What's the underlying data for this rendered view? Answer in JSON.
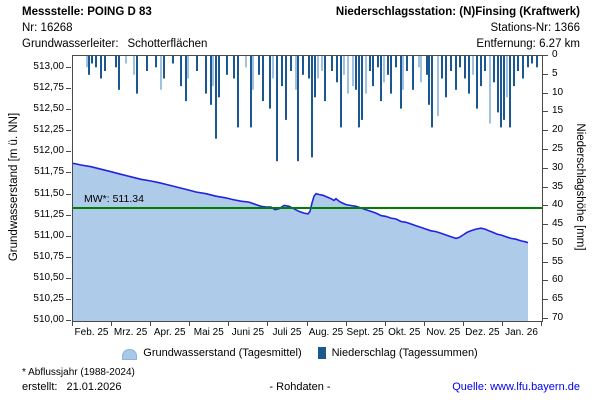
{
  "header": {
    "left": {
      "title": "Messstelle: POING D 83",
      "nr_label": "Nr:",
      "nr_value": "16268",
      "aquifer_label": "Grundwasserleiter:",
      "aquifer_value": "Schotterflächen"
    },
    "right": {
      "title": "Niederschlagsstation: (N)Finsing (Kraftwerk)",
      "station_label": "Stations-Nr:",
      "station_value": "1366",
      "distance_label": "Entfernung:",
      "distance_value": "6.27 km"
    }
  },
  "chart_data": {
    "type": "line+bar",
    "title": "",
    "x_axis": {
      "labels": [
        "Feb. 25",
        "Mrz. 25",
        "Apr. 25",
        "Mai 25",
        "Juni 25",
        "Juli 25",
        "Aug. 25",
        "Sept. 25",
        "Okt. 25",
        "Nov. 25",
        "Dez. 25",
        "Jan. 26"
      ]
    },
    "left_axis": {
      "label": "Grundwasserstand [m ü. NN]",
      "tick_labels": [
        "513,00",
        "512,75",
        "512,50",
        "512,25",
        "512,00",
        "511,75",
        "511,50",
        "511,25",
        "511,00",
        "510,75",
        "510,50",
        "510,25",
        "510,00"
      ],
      "tick_values": [
        513.0,
        512.75,
        512.5,
        512.25,
        512.0,
        511.75,
        511.5,
        511.25,
        511.0,
        510.75,
        510.5,
        510.25,
        510.0
      ],
      "range": [
        510.0,
        513.15
      ],
      "grid": false
    },
    "right_axis": {
      "label": "Niederschlagshöhe [mm]",
      "tick_values": [
        0,
        5,
        10,
        15,
        20,
        25,
        30,
        35,
        40,
        45,
        50,
        55,
        60,
        65,
        70
      ],
      "range": [
        0,
        70
      ],
      "inverted": true
    },
    "mw_line": {
      "label": "MW*: 511.34",
      "value": 511.34,
      "color": "#007F00"
    },
    "groundwater": {
      "name": "Grundwasserstand (Tagesmittel)",
      "line_color": "#2222E0",
      "fill_color": "#AECBEA",
      "points": [
        [
          72,
          511.87
        ],
        [
          80,
          511.85
        ],
        [
          90,
          511.83
        ],
        [
          100,
          511.8
        ],
        [
          110,
          511.77
        ],
        [
          120,
          511.74
        ],
        [
          130,
          511.71
        ],
        [
          140,
          511.68
        ],
        [
          150,
          511.66
        ],
        [
          158,
          511.64
        ],
        [
          165,
          511.62
        ],
        [
          175,
          511.59
        ],
        [
          185,
          511.56
        ],
        [
          195,
          511.53
        ],
        [
          205,
          511.51
        ],
        [
          215,
          511.48
        ],
        [
          225,
          511.46
        ],
        [
          232,
          511.44
        ],
        [
          240,
          511.42
        ],
        [
          248,
          511.41
        ],
        [
          255,
          511.38
        ],
        [
          260,
          511.36
        ],
        [
          265,
          511.35
        ],
        [
          270,
          511.35
        ],
        [
          274,
          511.32
        ],
        [
          278,
          511.33
        ],
        [
          283,
          511.37
        ],
        [
          288,
          511.36
        ],
        [
          293,
          511.33
        ],
        [
          298,
          511.3
        ],
        [
          303,
          511.28
        ],
        [
          307,
          511.27
        ],
        [
          309,
          511.3
        ],
        [
          311,
          511.4
        ],
        [
          313,
          511.48
        ],
        [
          315,
          511.51
        ],
        [
          318,
          511.5
        ],
        [
          322,
          511.49
        ],
        [
          326,
          511.47
        ],
        [
          330,
          511.45
        ],
        [
          333,
          511.43
        ],
        [
          335,
          511.45
        ],
        [
          338,
          511.42
        ],
        [
          341,
          511.4
        ],
        [
          345,
          511.38
        ],
        [
          350,
          511.37
        ],
        [
          355,
          511.36
        ],
        [
          360,
          511.34
        ],
        [
          365,
          511.32
        ],
        [
          370,
          511.3
        ],
        [
          375,
          511.28
        ],
        [
          380,
          511.25
        ],
        [
          385,
          511.24
        ],
        [
          390,
          511.22
        ],
        [
          395,
          511.21
        ],
        [
          400,
          511.18
        ],
        [
          405,
          511.17
        ],
        [
          410,
          511.15
        ],
        [
          415,
          511.13
        ],
        [
          420,
          511.11
        ],
        [
          425,
          511.09
        ],
        [
          430,
          511.07
        ],
        [
          435,
          511.06
        ],
        [
          440,
          511.04
        ],
        [
          445,
          511.02
        ],
        [
          450,
          511.0
        ],
        [
          455,
          510.98
        ],
        [
          458,
          510.99
        ],
        [
          462,
          511.02
        ],
        [
          466,
          511.05
        ],
        [
          470,
          511.07
        ],
        [
          475,
          511.09
        ],
        [
          480,
          511.1
        ],
        [
          484,
          511.09
        ],
        [
          488,
          511.07
        ],
        [
          492,
          511.05
        ],
        [
          496,
          511.03
        ],
        [
          500,
          511.02
        ],
        [
          505,
          511.0
        ],
        [
          510,
          510.98
        ],
        [
          515,
          510.97
        ],
        [
          520,
          510.95
        ],
        [
          524,
          510.94
        ],
        [
          527,
          510.93
        ]
      ]
    },
    "precipitation": {
      "name": "Niederschlag (Tagessummen)",
      "color_dark": "#1B5891",
      "color_light": "#9FC2E2",
      "bars": [
        [
          86,
          3,
          "l"
        ],
        [
          88,
          5,
          "d"
        ],
        [
          91,
          2,
          "d"
        ],
        [
          95,
          3,
          "d"
        ],
        [
          100,
          6,
          "d"
        ],
        [
          104,
          4,
          "d"
        ],
        [
          115,
          3,
          "d"
        ],
        [
          118,
          9,
          "d"
        ],
        [
          125,
          2,
          "l"
        ],
        [
          133,
          5,
          "l"
        ],
        [
          136,
          10,
          "d"
        ],
        [
          146,
          4,
          "d"
        ],
        [
          155,
          3,
          "d"
        ],
        [
          160,
          9,
          "l"
        ],
        [
          163,
          6,
          "d"
        ],
        [
          172,
          2,
          "d"
        ],
        [
          180,
          8,
          "d"
        ],
        [
          185,
          12,
          "d"
        ],
        [
          187,
          6,
          "l"
        ],
        [
          196,
          4,
          "d"
        ],
        [
          205,
          10,
          "d"
        ],
        [
          210,
          13,
          "d"
        ],
        [
          212,
          8,
          "l"
        ],
        [
          215,
          22,
          "d"
        ],
        [
          218,
          11,
          "d"
        ],
        [
          226,
          5,
          "d"
        ],
        [
          233,
          6,
          "d"
        ],
        [
          237,
          19,
          "d"
        ],
        [
          245,
          3,
          "l"
        ],
        [
          250,
          19,
          "d"
        ],
        [
          252,
          9,
          "l"
        ],
        [
          258,
          5,
          "d"
        ],
        [
          262,
          12,
          "d"
        ],
        [
          269,
          14,
          "d"
        ],
        [
          272,
          6,
          "l"
        ],
        [
          276,
          28,
          "d"
        ],
        [
          281,
          8,
          "d"
        ],
        [
          285,
          17,
          "d"
        ],
        [
          290,
          4,
          "d"
        ],
        [
          295,
          9,
          "l"
        ],
        [
          297,
          28,
          "d"
        ],
        [
          302,
          5,
          "d"
        ],
        [
          308,
          6,
          "d"
        ],
        [
          311,
          27,
          "d"
        ],
        [
          314,
          11,
          "d"
        ],
        [
          317,
          6,
          "l"
        ],
        [
          321,
          4,
          "l"
        ],
        [
          324,
          12,
          "d"
        ],
        [
          331,
          4,
          "d"
        ],
        [
          336,
          7,
          "d"
        ],
        [
          340,
          19,
          "d"
        ],
        [
          343,
          5,
          "l"
        ],
        [
          347,
          10,
          "l"
        ],
        [
          352,
          8,
          "l"
        ],
        [
          355,
          9,
          "d"
        ],
        [
          358,
          19,
          "d"
        ],
        [
          361,
          17,
          "d"
        ],
        [
          365,
          10,
          "l"
        ],
        [
          369,
          4,
          "d"
        ],
        [
          372,
          8,
          "d"
        ],
        [
          377,
          3,
          "d"
        ],
        [
          380,
          12,
          "d"
        ],
        [
          383,
          7,
          "l"
        ],
        [
          387,
          5,
          "d"
        ],
        [
          390,
          10,
          "d"
        ],
        [
          395,
          3,
          "d"
        ],
        [
          400,
          14,
          "d"
        ],
        [
          402,
          9,
          "l"
        ],
        [
          406,
          4,
          "d"
        ],
        [
          412,
          9,
          "d"
        ],
        [
          418,
          3,
          "l"
        ],
        [
          420,
          7,
          "l"
        ],
        [
          426,
          5,
          "d"
        ],
        [
          428,
          13,
          "d"
        ],
        [
          431,
          19,
          "d"
        ],
        [
          437,
          16,
          "l"
        ],
        [
          441,
          6,
          "d"
        ],
        [
          445,
          11,
          "d"
        ],
        [
          450,
          4,
          "d"
        ],
        [
          455,
          9,
          "d"
        ],
        [
          459,
          3,
          "d"
        ],
        [
          464,
          6,
          "d"
        ],
        [
          468,
          10,
          "d"
        ],
        [
          472,
          5,
          "l"
        ],
        [
          476,
          14,
          "d"
        ],
        [
          480,
          8,
          "d"
        ],
        [
          484,
          4,
          "d"
        ],
        [
          489,
          18,
          "l"
        ],
        [
          493,
          7,
          "d"
        ],
        [
          497,
          15,
          "d"
        ],
        [
          500,
          19,
          "d"
        ],
        [
          503,
          17,
          "d"
        ],
        [
          506,
          11,
          "l"
        ],
        [
          509,
          19,
          "d"
        ],
        [
          513,
          8,
          "d"
        ],
        [
          517,
          4,
          "d"
        ],
        [
          522,
          6,
          "d"
        ],
        [
          527,
          3,
          "d"
        ],
        [
          531,
          2,
          "d"
        ],
        [
          536,
          3,
          "d"
        ]
      ]
    },
    "legend_position": "bottom"
  },
  "legend": {
    "items": [
      {
        "label": "Grundwasserstand (Tagesmittel)"
      },
      {
        "label": "Niederschlag (Tagessummen)"
      }
    ]
  },
  "footer": {
    "note": "* Abflussjahr (1988-2024)",
    "created_label": "erstellt:",
    "created_value": "21.01.2026",
    "center": "- Rohdaten -",
    "source_label": "Quelle:",
    "source_link": "www.lfu.bayern.de"
  }
}
